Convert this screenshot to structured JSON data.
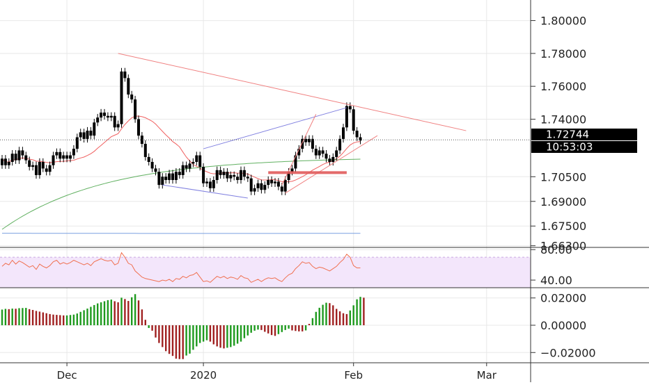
{
  "colors": {
    "background": "#ffffff",
    "grid": "#e8e8e8",
    "axis_line": "#333333",
    "candle": "#000000",
    "trendline": "#f08080",
    "wedge_line": "#8080e0",
    "ma_fast": "#f06060",
    "ma_mid": "#60b060",
    "ma_slow": "#7aa0e0",
    "support_bar": "#e05a5a",
    "rsi_line": "#f07050",
    "rsi_band": "#f3e6fb",
    "macd_up": "#1e9a1e",
    "macd_down": "#a02020",
    "price_label_bg": "#000000",
    "price_label_fg": "#ffffff"
  },
  "labels": {
    "last_price": "1.72744",
    "countdown": "10:53:03"
  },
  "chart_data": [
    {
      "type": "candlestick",
      "panel": "price",
      "y_ticks": [
        "1.80000",
        "1.78000",
        "1.76000",
        "1.74000",
        "1.70500",
        "1.69000",
        "1.67500",
        "1.66300"
      ],
      "y_tick_values": [
        1.8,
        1.78,
        1.76,
        1.74,
        1.705,
        1.69,
        1.675,
        1.663
      ],
      "ylim": [
        1.662,
        1.8125
      ],
      "x_ticks": [
        "Dec",
        "2020",
        "Feb",
        "Mar"
      ],
      "x_tick_index": [
        19,
        59,
        103,
        142
      ],
      "last_price": 1.72744,
      "close": [
        1.716,
        1.712,
        1.714,
        1.719,
        1.715,
        1.721,
        1.718,
        1.715,
        1.711,
        1.712,
        1.706,
        1.714,
        1.71,
        1.708,
        1.712,
        1.718,
        1.72,
        1.716,
        1.718,
        1.716,
        1.718,
        1.722,
        1.729,
        1.732,
        1.728,
        1.733,
        1.73,
        1.738,
        1.741,
        1.744,
        1.742,
        1.741,
        1.742,
        1.735,
        1.737,
        1.769,
        1.765,
        1.755,
        1.752,
        1.74,
        1.73,
        1.725,
        1.717,
        1.714,
        1.71,
        1.708,
        1.7,
        1.705,
        1.703,
        1.707,
        1.703,
        1.708,
        1.706,
        1.712,
        1.71,
        1.713,
        1.714,
        1.718,
        1.711,
        1.701,
        1.702,
        1.698,
        1.703,
        1.709,
        1.706,
        1.708,
        1.704,
        1.706,
        1.705,
        1.703,
        1.709,
        1.705,
        1.704,
        1.696,
        1.698,
        1.701,
        1.697,
        1.7,
        1.703,
        1.701,
        1.702,
        1.699,
        1.696,
        1.703,
        1.708,
        1.71,
        1.718,
        1.722,
        1.728,
        1.726,
        1.728,
        1.722,
        1.718,
        1.721,
        1.719,
        1.716,
        1.714,
        1.717,
        1.721,
        1.728,
        1.735,
        1.748,
        1.746,
        1.733,
        1.729,
        1.727
      ],
      "open": [
        1.712,
        1.716,
        1.712,
        1.714,
        1.719,
        1.715,
        1.721,
        1.718,
        1.715,
        1.711,
        1.712,
        1.706,
        1.714,
        1.71,
        1.708,
        1.712,
        1.718,
        1.72,
        1.716,
        1.718,
        1.716,
        1.718,
        1.722,
        1.729,
        1.732,
        1.728,
        1.733,
        1.73,
        1.738,
        1.741,
        1.744,
        1.742,
        1.741,
        1.742,
        1.735,
        1.737,
        1.769,
        1.765,
        1.755,
        1.752,
        1.74,
        1.73,
        1.725,
        1.717,
        1.714,
        1.71,
        1.708,
        1.7,
        1.705,
        1.703,
        1.707,
        1.703,
        1.708,
        1.706,
        1.712,
        1.71,
        1.713,
        1.714,
        1.718,
        1.711,
        1.701,
        1.702,
        1.698,
        1.703,
        1.709,
        1.706,
        1.708,
        1.704,
        1.706,
        1.705,
        1.703,
        1.709,
        1.705,
        1.704,
        1.696,
        1.698,
        1.701,
        1.697,
        1.7,
        1.703,
        1.701,
        1.702,
        1.699,
        1.696,
        1.703,
        1.708,
        1.71,
        1.718,
        1.722,
        1.728,
        1.726,
        1.728,
        1.722,
        1.718,
        1.721,
        1.719,
        1.716,
        1.714,
        1.717,
        1.721,
        1.728,
        1.735,
        1.748,
        1.746,
        1.733,
        1.729
      ],
      "annotations": [
        {
          "kind": "trendline",
          "from": [
            34,
            1.78
          ],
          "to": [
            136,
            1.733
          ],
          "color_key": "trendline"
        },
        {
          "kind": "trendline",
          "from": [
            59,
            1.722
          ],
          "to": [
            101,
            1.747
          ],
          "color_key": "wedge_line"
        },
        {
          "kind": "trendline",
          "from": [
            47,
            1.7
          ],
          "to": [
            72,
            1.692
          ],
          "color_key": "wedge_line"
        },
        {
          "kind": "trendline",
          "from": [
            82,
            1.7
          ],
          "to": [
            92,
            1.743
          ],
          "color_key": "trendline"
        },
        {
          "kind": "trendline",
          "from": [
            83,
            1.695
          ],
          "to": [
            110,
            1.73
          ],
          "color_key": "trendline"
        },
        {
          "kind": "hbar",
          "from": [
            78,
            1.7075
          ],
          "to": [
            101,
            1.7075
          ],
          "color_key": "support_bar"
        },
        {
          "kind": "dotted",
          "y": 1.72744
        }
      ]
    },
    {
      "type": "line",
      "panel": "rsi",
      "y_ticks": [
        "80.00",
        "40.00"
      ],
      "y_tick_values": [
        80,
        40
      ],
      "ylim": [
        30,
        82
      ],
      "band": [
        30,
        70
      ],
      "values": [
        58,
        62,
        60,
        66,
        61,
        65,
        63,
        60,
        57,
        59,
        54,
        61,
        58,
        56,
        59,
        64,
        66,
        61,
        63,
        61,
        63,
        66,
        64,
        62,
        60,
        62,
        59,
        64,
        66,
        68,
        66,
        65,
        66,
        60,
        62,
        76,
        70,
        62,
        60,
        52,
        48,
        44,
        42,
        41,
        40,
        39,
        38,
        40,
        39,
        41,
        38,
        42,
        41,
        45,
        43,
        46,
        47,
        50,
        44,
        38,
        39,
        37,
        41,
        45,
        43,
        45,
        42,
        44,
        43,
        41,
        46,
        43,
        42,
        37,
        39,
        41,
        38,
        41,
        43,
        42,
        43,
        40,
        38,
        43,
        47,
        49,
        55,
        59,
        64,
        62,
        63,
        58,
        55,
        57,
        56,
        54,
        52,
        55,
        58,
        63,
        67,
        74,
        70,
        59,
        56,
        56
      ]
    },
    {
      "type": "bar",
      "panel": "macd_histogram",
      "y_ticks": [
        "0.02000",
        "0.00000",
        "−0.02000"
      ],
      "y_tick_values": [
        0.02,
        0.0,
        -0.02
      ],
      "ylim": [
        -0.0275,
        0.027
      ],
      "values": [
        0.0115,
        0.012,
        0.0118,
        0.0122,
        0.0121,
        0.0125,
        0.0126,
        0.0127,
        0.0118,
        0.0112,
        0.0105,
        0.01,
        0.0094,
        0.0088,
        0.0082,
        0.0078,
        0.0076,
        0.0074,
        0.0072,
        0.0072,
        0.0075,
        0.0078,
        0.0086,
        0.0098,
        0.011,
        0.0122,
        0.0135,
        0.0148,
        0.016,
        0.0168,
        0.0176,
        0.0184,
        0.0188,
        0.0176,
        0.0168,
        0.0202,
        0.0192,
        0.0178,
        0.0205,
        0.0228,
        0.0182,
        0.0116,
        0.004,
        -0.002,
        -0.004,
        -0.009,
        -0.013,
        -0.016,
        -0.019,
        -0.021,
        -0.0225,
        -0.0245,
        -0.0248,
        -0.0248,
        -0.0222,
        -0.0208,
        -0.018,
        -0.0155,
        -0.013,
        -0.012,
        -0.011,
        -0.012,
        -0.014,
        -0.0155,
        -0.0165,
        -0.017,
        -0.0165,
        -0.016,
        -0.015,
        -0.0135,
        -0.012,
        -0.0095,
        -0.0075,
        -0.0055,
        -0.004,
        -0.0032,
        -0.0035,
        -0.0048,
        -0.006,
        -0.0072,
        -0.0078,
        -0.0065,
        -0.005,
        -0.0035,
        -0.0025,
        -0.0038,
        -0.0042,
        -0.0045,
        -0.0045,
        -0.0038,
        0.001,
        0.0052,
        0.0098,
        0.0128,
        0.015,
        0.0165,
        0.0162,
        0.0146,
        0.012,
        0.0102,
        0.0088,
        0.0082,
        0.0108,
        0.0146,
        0.019,
        0.0208,
        0.0202
      ]
    }
  ]
}
